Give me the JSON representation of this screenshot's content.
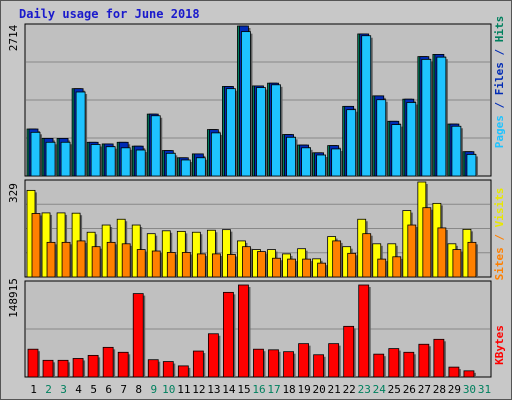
{
  "chart_data": {
    "type": "bar",
    "title": "Daily usage for June 2018",
    "days": [
      "1",
      "2",
      "3",
      "4",
      "5",
      "6",
      "7",
      "8",
      "9",
      "10",
      "11",
      "12",
      "13",
      "14",
      "15",
      "16",
      "17",
      "18",
      "19",
      "20",
      "21",
      "22",
      "23",
      "24",
      "25",
      "26",
      "27",
      "28",
      "29",
      "30",
      "31"
    ],
    "weekend_days": [
      "2",
      "3",
      "9",
      "10",
      "16",
      "17",
      "23",
      "24",
      "30",
      "31"
    ],
    "top_panel": {
      "ymax_label": "2714",
      "ylim": [
        0,
        2714
      ],
      "series": [
        {
          "name": "Pages",
          "color": "#1ec3ff",
          "values": [
            790,
            610,
            610,
            1520,
            570,
            530,
            510,
            470,
            1090,
            410,
            290,
            330,
            780,
            1580,
            2612,
            1600,
            1650,
            700,
            510,
            380,
            490,
            1200,
            2538,
            1380,
            930,
            1330,
            2110,
            2150,
            900,
            390,
            0
          ]
        },
        {
          "name": "Files",
          "color": "#002bb5",
          "values": [
            850,
            680,
            680,
            1580,
            610,
            580,
            610,
            540,
            1120,
            460,
            330,
            400,
            840,
            1620,
            2714,
            1630,
            1680,
            750,
            560,
            420,
            550,
            1260,
            2570,
            1450,
            990,
            1390,
            2160,
            2200,
            940,
            440,
            0
          ]
        },
        {
          "name": "Hits",
          "color": "#00805e",
          "values": [
            850,
            680,
            680,
            1580,
            610,
            580,
            610,
            540,
            1120,
            460,
            330,
            400,
            840,
            1620,
            2714,
            1630,
            1680,
            750,
            560,
            420,
            550,
            1260,
            2570,
            1450,
            990,
            1390,
            2160,
            2200,
            940,
            440,
            0
          ]
        }
      ]
    },
    "middle_panel": {
      "ymax_label": "329",
      "ylim": [
        0,
        329
      ],
      "series": [
        {
          "name": "Visits",
          "color": "#ffff00",
          "values": [
            300,
            222,
            222,
            221,
            155,
            180,
            200,
            180,
            150,
            160,
            158,
            155,
            162,
            164,
            125,
            95,
            95,
            80,
            98,
            63,
            140,
            105,
            200,
            115,
            115,
            230,
            329,
            255,
            115,
            165,
            0
          ]
        },
        {
          "name": "Sites",
          "color": "#ff8000",
          "values": [
            220,
            120,
            120,
            125,
            105,
            120,
            115,
            95,
            90,
            85,
            85,
            80,
            80,
            78,
            105,
            88,
            65,
            62,
            62,
            48,
            125,
            82,
            150,
            62,
            70,
            180,
            240,
            170,
            95,
            120,
            0
          ]
        }
      ]
    },
    "bottom_panel": {
      "ymax_label": "148915",
      "ylim": [
        0,
        148915
      ],
      "series": [
        {
          "name": "KBytes",
          "color": "#ff0000",
          "values": [
            45000,
            27000,
            27000,
            30000,
            35000,
            48000,
            40000,
            135000,
            28000,
            25000,
            18000,
            42000,
            70000,
            137000,
            148915,
            45000,
            44000,
            41000,
            54000,
            36000,
            54000,
            82000,
            148915,
            37000,
            46000,
            40000,
            53000,
            61000,
            16000,
            10000,
            0
          ]
        }
      ]
    },
    "right_label_top": [
      {
        "text": "Pages",
        "color": "#1ec3ff"
      },
      {
        "text": " / ",
        "color": "#002bb5"
      },
      {
        "text": "Files",
        "color": "#002bb5"
      },
      {
        "text": " / ",
        "color": "#002bb5"
      },
      {
        "text": "Hits",
        "color": "#00805e"
      }
    ],
    "right_label_middle": [
      {
        "text": "Sites",
        "color": "#ff8000"
      },
      {
        "text": " / ",
        "color": "#ff8000"
      },
      {
        "text": "Visits",
        "color": "#e8e800"
      }
    ],
    "right_label_bottom": [
      {
        "text": "KBytes",
        "color": "#ff0000"
      }
    ],
    "colors": {
      "background": "#c8c8c8",
      "plot_background": "#c0c0c0",
      "gridline": "#888888",
      "weekday_label": "#000000",
      "weekend_label": "#00805e",
      "title": "#1a1acc"
    }
  }
}
